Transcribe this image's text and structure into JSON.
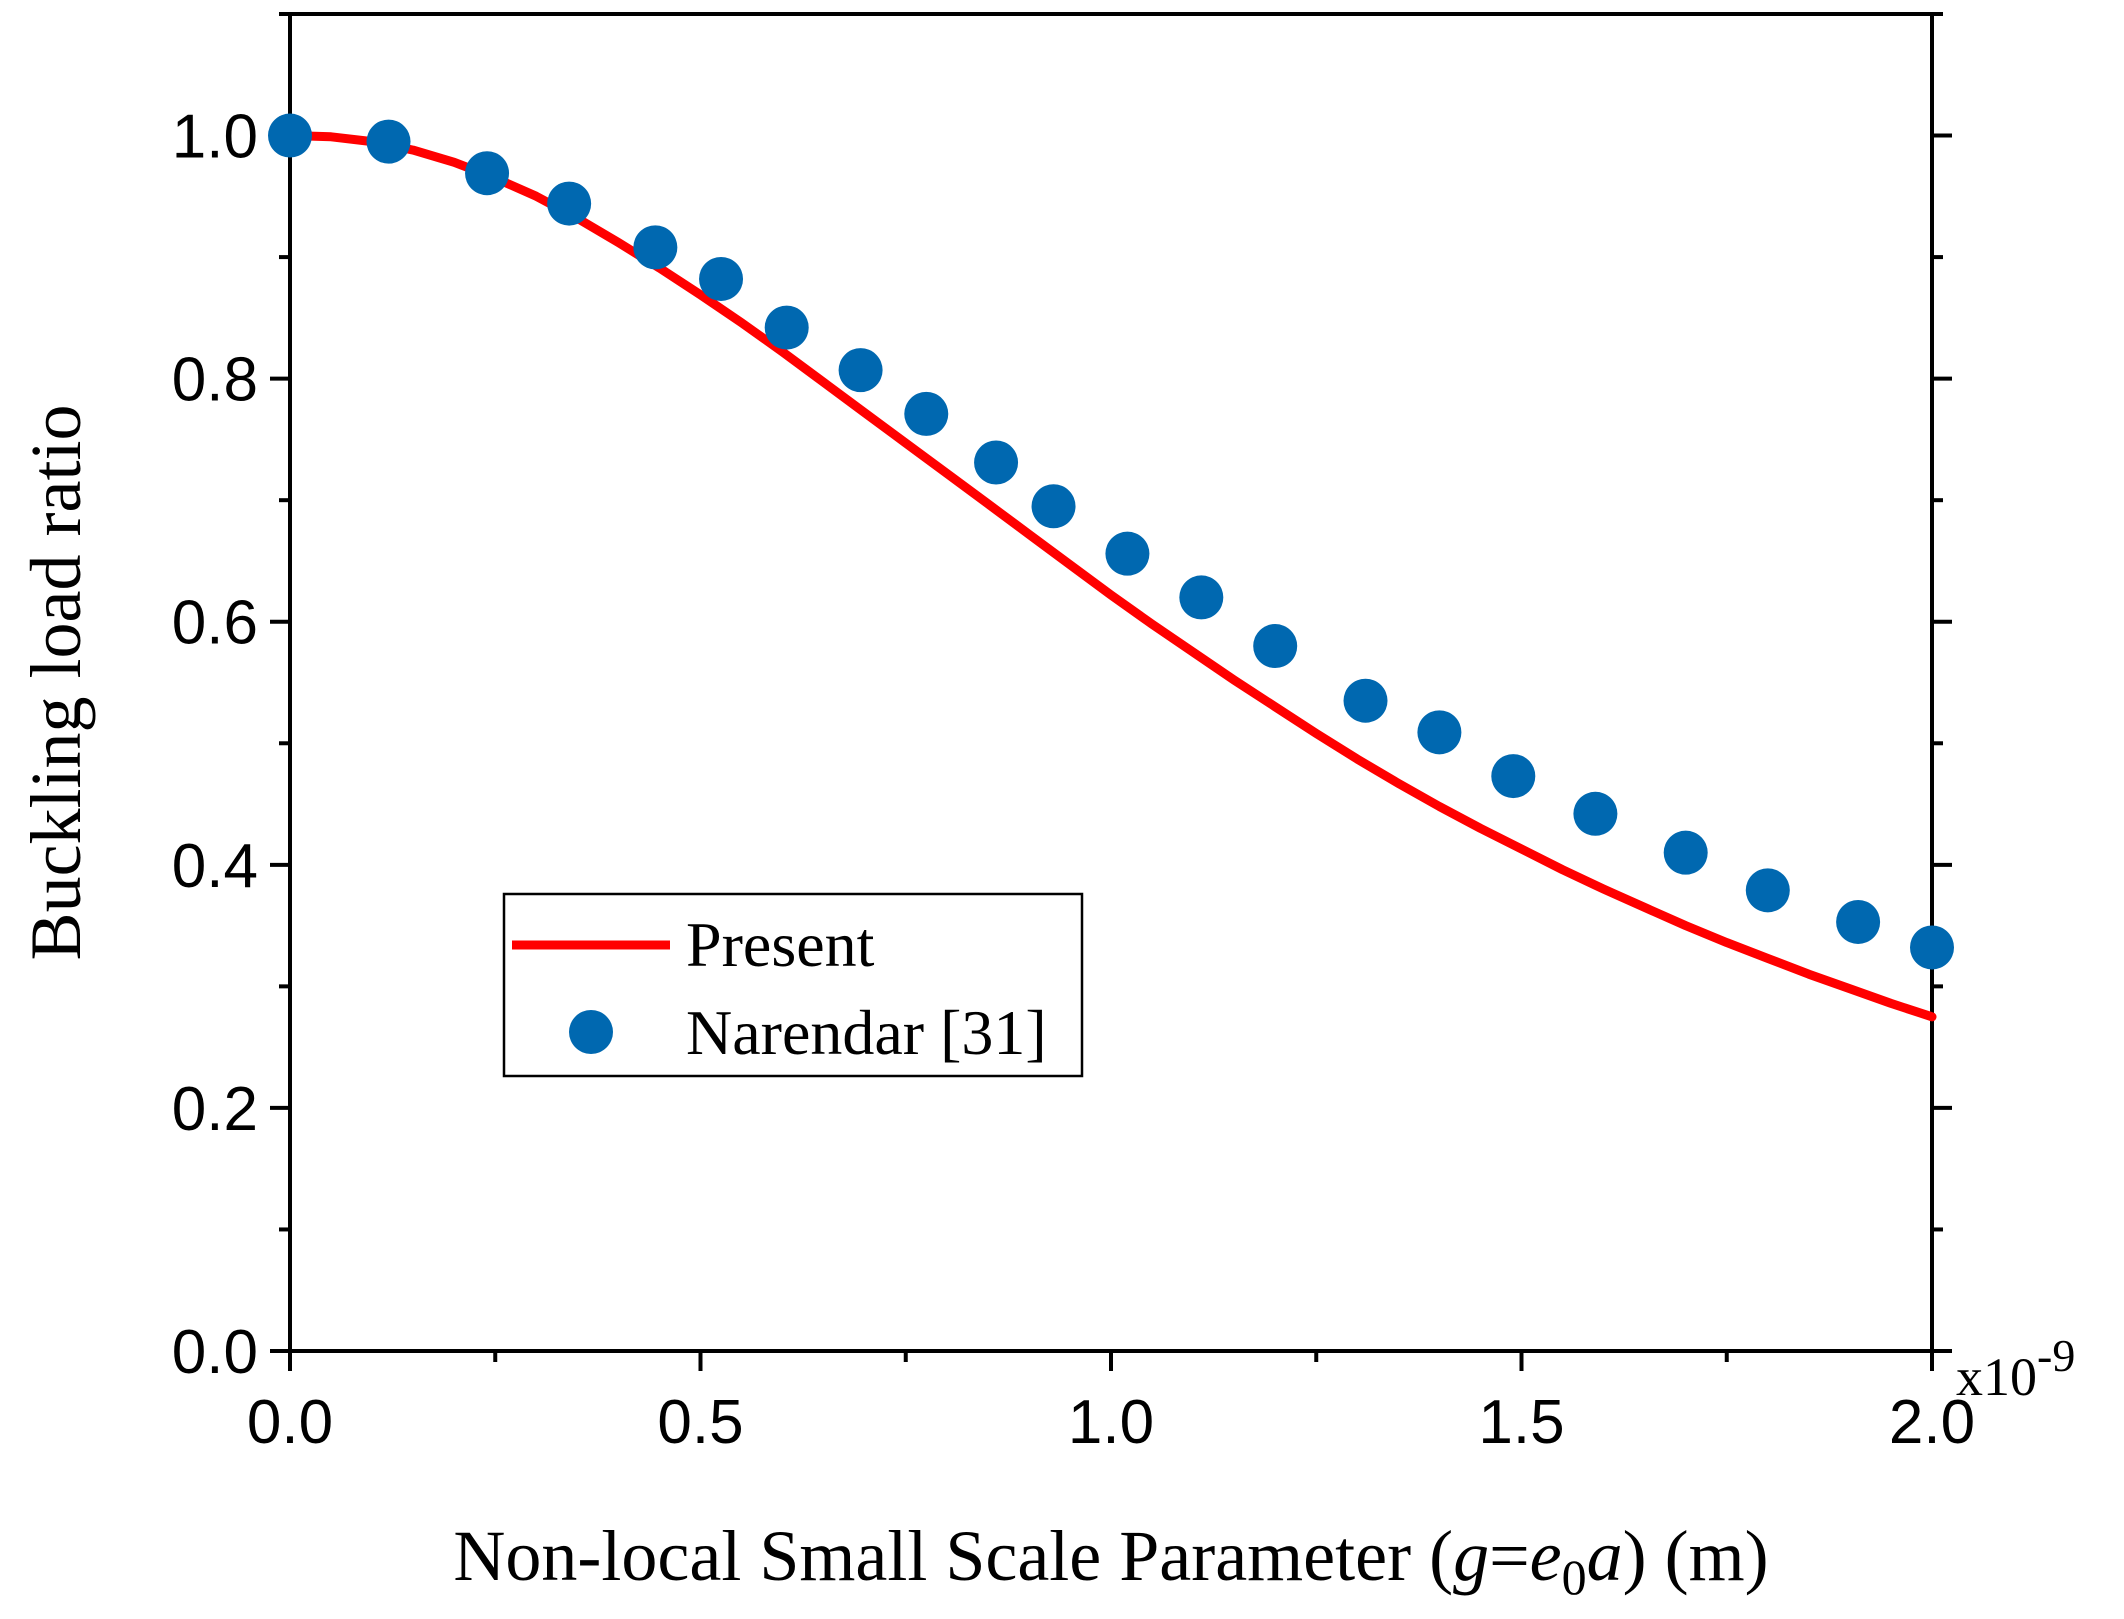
{
  "chart_data": {
    "type": "line",
    "title": "",
    "xlabel": "Non-local Small Scale Parameter (g=e0a) (m)",
    "xlabel_parts": {
      "prefix": "Non-local Small Scale Parameter (",
      "var_g": "g",
      "equals": "=",
      "var_e": "e",
      "sub_0": "0",
      "var_a": "a",
      "suffix": ") (m)"
    },
    "ylabel": "Buckling load ratio",
    "x_multiplier": {
      "base": "x10",
      "exponent": "-9"
    },
    "xlim": [
      0,
      2.0
    ],
    "ylim": [
      0,
      1.1
    ],
    "x_ticks": [
      0.0,
      0.5,
      1.0,
      1.5,
      2.0
    ],
    "x_tick_labels": [
      "0.0",
      "0.5",
      "1.0",
      "1.5",
      "2.0"
    ],
    "y_ticks": [
      0.0,
      0.2,
      0.4,
      0.6,
      0.8,
      1.0
    ],
    "y_tick_labels": [
      "0.0",
      "0.2",
      "0.4",
      "0.6",
      "0.8",
      "1.0"
    ],
    "legend_position": "center-left",
    "series": [
      {
        "name": "Present",
        "style": "line",
        "color": "#ff0000",
        "x": [
          0.0,
          0.05,
          0.1,
          0.15,
          0.2,
          0.25,
          0.3,
          0.35,
          0.4,
          0.45,
          0.5,
          0.55,
          0.6,
          0.65,
          0.7,
          0.75,
          0.8,
          0.85,
          0.9,
          0.95,
          1.0,
          1.05,
          1.1,
          1.15,
          1.2,
          1.25,
          1.3,
          1.35,
          1.4,
          1.45,
          1.5,
          1.55,
          1.6,
          1.65,
          1.7,
          1.75,
          1.8,
          1.85,
          1.9,
          1.95,
          2.0
        ],
        "values": [
          1.0,
          0.999,
          0.995,
          0.988,
          0.978,
          0.965,
          0.95,
          0.932,
          0.912,
          0.891,
          0.869,
          0.846,
          0.822,
          0.797,
          0.772,
          0.747,
          0.722,
          0.697,
          0.672,
          0.647,
          0.622,
          0.598,
          0.575,
          0.552,
          0.53,
          0.508,
          0.487,
          0.467,
          0.448,
          0.43,
          0.413,
          0.396,
          0.38,
          0.365,
          0.35,
          0.336,
          0.323,
          0.31,
          0.298,
          0.286,
          0.275
        ]
      },
      {
        "name": "Narendar [31]",
        "style": "scatter",
        "color": "#0068b0",
        "x": [
          0.0,
          0.12,
          0.24,
          0.34,
          0.445,
          0.525,
          0.605,
          0.695,
          0.775,
          0.86,
          0.93,
          1.02,
          1.11,
          1.2,
          1.31,
          1.4,
          1.49,
          1.59,
          1.7,
          1.8,
          1.91,
          2.0
        ],
        "values": [
          1.0,
          0.995,
          0.969,
          0.944,
          0.908,
          0.882,
          0.842,
          0.807,
          0.771,
          0.731,
          0.695,
          0.656,
          0.62,
          0.58,
          0.535,
          0.509,
          0.473,
          0.442,
          0.41,
          0.379,
          0.353,
          0.332
        ]
      }
    ]
  }
}
